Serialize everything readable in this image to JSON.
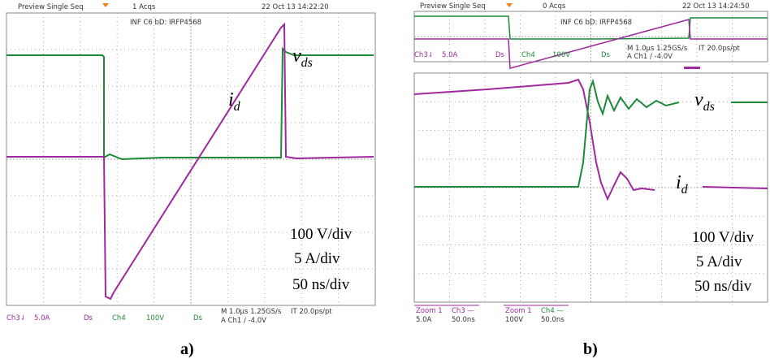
{
  "panel_a": {
    "header": {
      "mode": "Preview  Single Seq",
      "acqs": "1 Acqs",
      "timestamp": "22 Oct 13 14:22:20"
    },
    "device": "INF C6 bD: IRFP4568",
    "trace_labels": {
      "vds": {
        "main": "v",
        "sub": "ds"
      },
      "id": {
        "main": "i",
        "sub": "d"
      }
    },
    "scales": [
      "100 V/div",
      "5 A/div",
      "50 ns/div"
    ],
    "footer": {
      "ch3": "Ch3⇃",
      "ch3_scale": "5.0A",
      "ds1": "Ds",
      "ch4": "Ch4",
      "ch4_scale": "100V",
      "ds2": "Ds",
      "timebase": "M 1.0µs 1.25GS/s",
      "interp": "IT 20.0ps/pt",
      "trigger": "A Ch1 ∕ -4.0V"
    },
    "caption": "a)"
  },
  "panel_b": {
    "header": {
      "mode": "Preview  Single Seq",
      "acqs": "0 Acqs",
      "timestamp": "22 Oct 13 14:24:50"
    },
    "device": "INF C6 bD: IRFP4568",
    "overview_footer": {
      "ch3": "Ch3⇃",
      "ch3_scale": "5.0A",
      "ds1": "Ds",
      "ch4": "Ch4",
      "ch4_scale": "100V",
      "ds2": "Ds",
      "timebase": "M 1.0µs 1.25GS/s",
      "interp": "IT 20.0ps/pt",
      "trigger": "A Ch1 ∕ -4.0V"
    },
    "trace_labels": {
      "vds": {
        "main": "v",
        "sub": "ds"
      },
      "id": {
        "main": "i",
        "sub": "d"
      }
    },
    "scales": [
      "100 V/div",
      "5 A/div",
      "50 ns/div"
    ],
    "zoom_footer": [
      {
        "zoom": "Zoom 1",
        "channel": "Ch3 —",
        "scale": "5.0A",
        "time": "50.0ns"
      },
      {
        "zoom": "Zoom 1",
        "channel": "Ch4 —",
        "scale": "100V",
        "time": "50.0ns"
      }
    ],
    "caption": "b)"
  }
}
